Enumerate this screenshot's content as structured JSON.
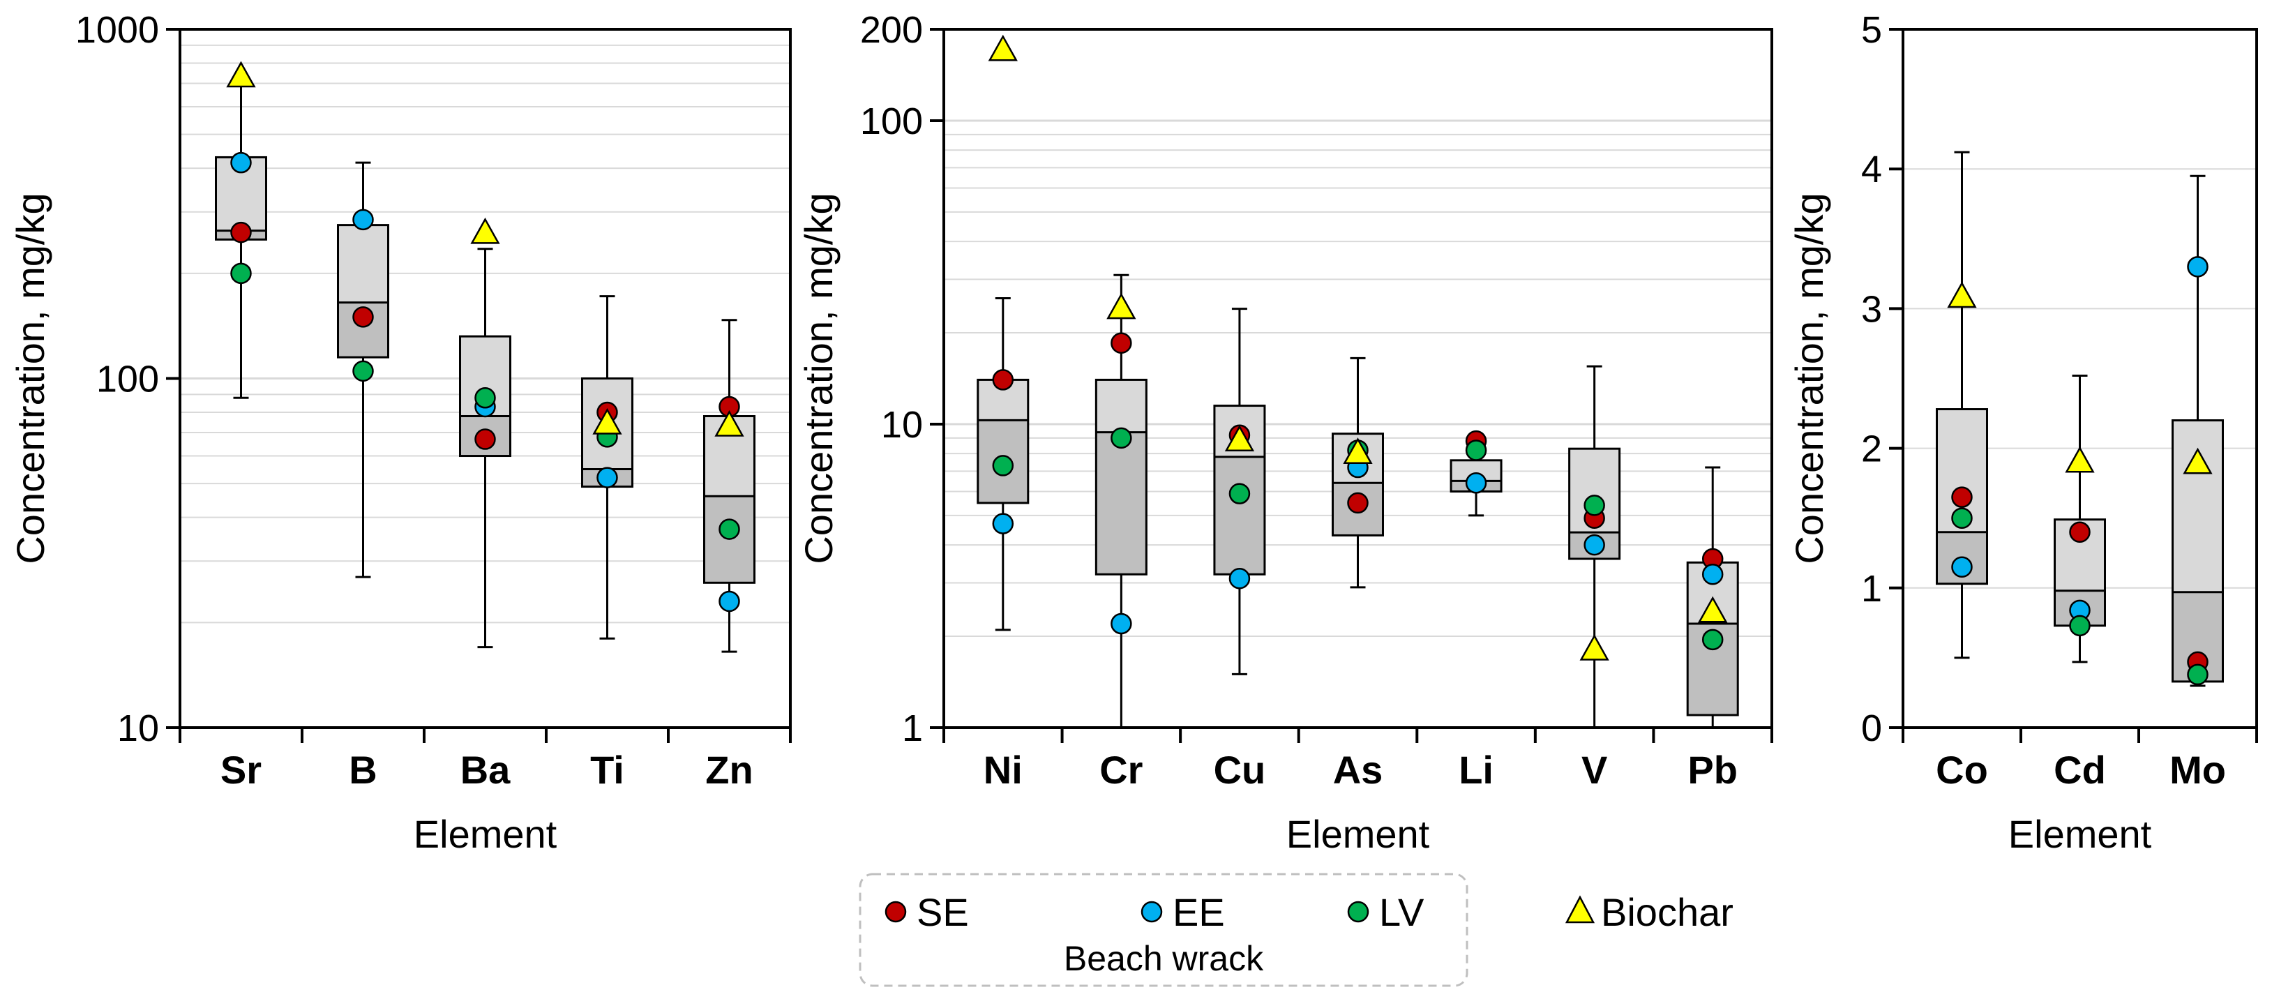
{
  "colors": {
    "SE": "#c00000",
    "EE": "#00b0f0",
    "LV": "#00b050",
    "Biochar": "#ffff00",
    "box_upper": "#d9d9d9",
    "box_lower": "#bfbfbf",
    "grid": "#d9d9d9"
  },
  "legend": {
    "entries": [
      {
        "key": "SE",
        "label": "SE",
        "marker": "circle"
      },
      {
        "key": "EE",
        "label": "EE",
        "marker": "circle"
      },
      {
        "key": "LV",
        "label": "LV",
        "marker": "circle"
      },
      {
        "key": "Biochar",
        "label": "Biochar",
        "marker": "triangle"
      }
    ],
    "caption": "Beach wrack",
    "placement": "bottom-center"
  },
  "chart_data": [
    {
      "type": "box",
      "scale": "log",
      "ylim": [
        10,
        1000
      ],
      "yticks": [
        10,
        100,
        1000
      ],
      "ylabel": "Concentration, mg/kg",
      "xlabel": "Element",
      "minor_grid": true,
      "categories": [
        "Sr",
        "B",
        "Ba",
        "Ti",
        "Zn"
      ],
      "boxes": [
        {
          "min": 88,
          "q1": 250,
          "median": 265,
          "q3": 430,
          "max": 690
        },
        {
          "min": 27,
          "q1": 115,
          "median": 165,
          "q3": 275,
          "max": 415
        },
        {
          "min": 17,
          "q1": 60,
          "median": 78,
          "q3": 132,
          "max": 235
        },
        {
          "min": 18,
          "q1": 49,
          "median": 55,
          "q3": 100,
          "max": 172
        },
        {
          "min": 16.5,
          "q1": 26,
          "median": 46,
          "q3": 78,
          "max": 147
        }
      ],
      "series": [
        {
          "name": "SE",
          "values": [
            262,
            150,
            67,
            80,
            83
          ]
        },
        {
          "name": "EE",
          "values": [
            415,
            285,
            83,
            52,
            23
          ]
        },
        {
          "name": "LV",
          "values": [
            200,
            105,
            88,
            68,
            37
          ]
        },
        {
          "name": "Biochar",
          "values": [
            730,
            null,
            260,
            74,
            73
          ]
        }
      ]
    },
    {
      "type": "box",
      "scale": "log",
      "ylim": [
        1,
        200
      ],
      "yticks": [
        1,
        10,
        100,
        200
      ],
      "ylabel": "Concentration, mg/kg",
      "xlabel": "Element",
      "minor_grid": true,
      "categories": [
        "Ni",
        "Cr",
        "Cu",
        "As",
        "Li",
        "V",
        "Pb"
      ],
      "boxes": [
        {
          "min": 2.1,
          "q1": 5.5,
          "median": 10.3,
          "q3": 14,
          "max": 26
        },
        {
          "min": 1.0,
          "q1": 3.2,
          "median": 9.4,
          "q3": 14,
          "max": 31
        },
        {
          "min": 1.5,
          "q1": 3.2,
          "median": 7.8,
          "q3": 11.5,
          "max": 24
        },
        {
          "min": 2.9,
          "q1": 4.3,
          "median": 6.4,
          "q3": 9.3,
          "max": 16.5
        },
        {
          "min": 5.0,
          "q1": 6.0,
          "median": 6.5,
          "q3": 7.6,
          "max": null
        },
        {
          "min": 1.0,
          "q1": 3.6,
          "median": 4.4,
          "q3": 8.3,
          "max": 15.5
        },
        {
          "min": 1.0,
          "q1": 1.1,
          "median": 2.2,
          "q3": 3.5,
          "max": 7.2
        }
      ],
      "series": [
        {
          "name": "SE",
          "values": [
            14,
            18.5,
            9.2,
            5.5,
            8.8,
            4.9,
            3.6
          ]
        },
        {
          "name": "EE",
          "values": [
            4.7,
            2.2,
            3.1,
            7.2,
            6.4,
            4.0,
            3.2
          ]
        },
        {
          "name": "LV",
          "values": [
            7.3,
            9.0,
            5.9,
            8.2,
            8.2,
            5.4,
            1.95
          ]
        },
        {
          "name": "Biochar",
          "values": [
            170,
            24,
            8.8,
            8.0,
            null,
            1.8,
            2.4
          ]
        }
      ]
    },
    {
      "type": "box",
      "scale": "linear",
      "ylim": [
        0,
        5
      ],
      "yticks": [
        0,
        1,
        2,
        3,
        4,
        5
      ],
      "ylabel": "Concentration, mg/kg",
      "xlabel": "Element",
      "minor_grid": false,
      "categories": [
        "Co",
        "Cd",
        "Mo"
      ],
      "boxes": [
        {
          "min": 0.5,
          "q1": 1.03,
          "median": 1.4,
          "q3": 2.28,
          "max": 4.12
        },
        {
          "min": 0.47,
          "q1": 0.73,
          "median": 0.98,
          "q3": 1.49,
          "max": 2.52
        },
        {
          "min": 0.3,
          "q1": 0.33,
          "median": 0.97,
          "q3": 2.2,
          "max": 3.95
        }
      ],
      "series": [
        {
          "name": "SE",
          "values": [
            1.65,
            1.4,
            0.47
          ]
        },
        {
          "name": "EE",
          "values": [
            1.15,
            0.84,
            3.3
          ]
        },
        {
          "name": "LV",
          "values": [
            1.5,
            0.73,
            0.38
          ]
        },
        {
          "name": "Biochar",
          "values": [
            3.08,
            1.9,
            1.89
          ]
        }
      ]
    }
  ]
}
